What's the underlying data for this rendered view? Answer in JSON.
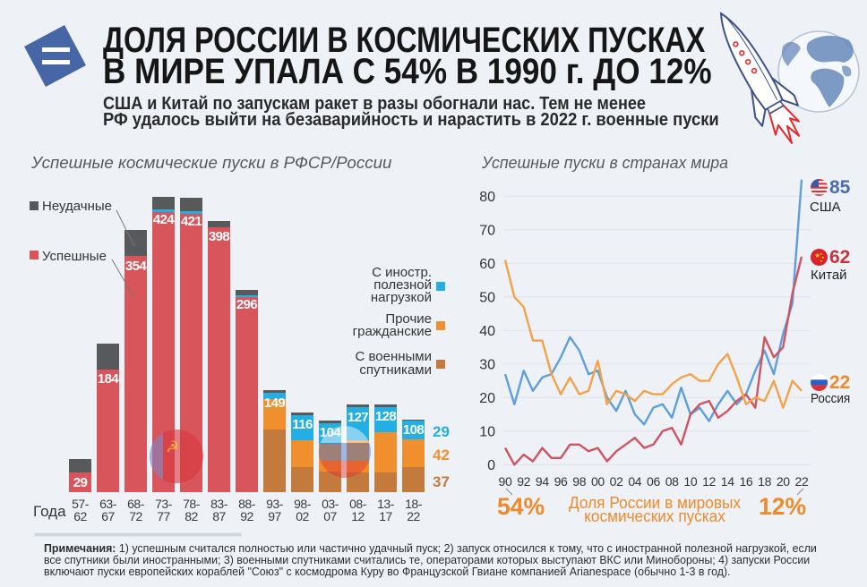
{
  "header": {
    "logo_icon": "equals-logo-icon",
    "title_line1": "ДОЛЯ РОССИИ В КОСМИЧЕСКИХ ПУСКАХ",
    "title_line2": "В МИРЕ УПАЛА С 54% В 1990 г. ДО 12%",
    "subtitle_line1": "США и Китай по запускам ракет в разы обогнали нас. Тем не менее",
    "subtitle_line2": "РФ удалось выйти на безаварийность и нарастить в 2022 г. военные пуски",
    "illustration_icons": [
      "rocket-icon",
      "globe-icon"
    ]
  },
  "colors": {
    "background": "#eef2f7",
    "logo": "#4766a6",
    "failed": "#58595b",
    "successful": "#d8555b",
    "foreign": "#23aee4",
    "civil": "#f08f2e",
    "military": "#c27a3d",
    "usa": "#5e9fd9",
    "china": "#cf5360",
    "russia": "#f3a24a",
    "usa_label": "#4a6cb1",
    "china_label": "#c8333c",
    "russia_label": "#ef8a2b",
    "orange_text": "#ef8a2b"
  },
  "chart_data": [
    {
      "type": "bar",
      "stacked": true,
      "title": "Успешные космические пуски в РФСР/России",
      "xlabel": "Года",
      "ylabel": "",
      "ylim": [
        0,
        470
      ],
      "grid": false,
      "categories": [
        "57-62",
        "63-67",
        "68-72",
        "73-77",
        "78-82",
        "83-87",
        "88-92",
        "93-97",
        "98-02",
        "03-07",
        "08-12",
        "13-17",
        "18-22"
      ],
      "series": [
        {
          "key": "military",
          "name": "С военными спутниками",
          "values": [
            null,
            null,
            null,
            null,
            null,
            null,
            null,
            94,
            37,
            31,
            30,
            30,
            37
          ]
        },
        {
          "key": "civil",
          "name": "Прочие гражданские",
          "values": [
            null,
            null,
            null,
            null,
            null,
            null,
            null,
            46,
            41,
            41,
            48,
            60,
            42
          ]
        },
        {
          "key": "successful",
          "name": "Успешные",
          "values": [
            29,
            184,
            354,
            420,
            418,
            398,
            293,
            null,
            null,
            null,
            null,
            null,
            null
          ]
        },
        {
          "key": "foreign",
          "name": "С иностр. полезной нагрузкой",
          "values": [
            0,
            0,
            0,
            4,
            3,
            0,
            3,
            9,
            38,
            32,
            49,
            38,
            29
          ]
        },
        {
          "key": "failed",
          "name": "Неудачные",
          "values": [
            21,
            39,
            40,
            19,
            21,
            9,
            8,
            4,
            3,
            3,
            4,
            4,
            1
          ]
        }
      ],
      "value_labels": [
        "29",
        "184",
        "354",
        "424",
        "421",
        "398",
        "296",
        "149",
        "116",
        "104",
        "127",
        "128",
        "108"
      ],
      "last_bar_labels": [
        {
          "key": "foreign",
          "text": "29"
        },
        {
          "key": "civil",
          "text": "42"
        },
        {
          "key": "military",
          "text": "37"
        }
      ],
      "legend": {
        "left": [
          {
            "key": "failed",
            "lines": [
              "Неудачные"
            ]
          },
          {
            "key": "successful",
            "lines": [
              "Успешные"
            ]
          }
        ],
        "right": [
          {
            "key": "foreign",
            "lines": [
              "С иностр.",
              "полезной",
              "нагрузкой"
            ]
          },
          {
            "key": "civil",
            "lines": [
              "Прочие",
              "гражданские"
            ]
          },
          {
            "key": "military",
            "lines": [
              "С военными",
              "спутниками"
            ]
          }
        ]
      }
    },
    {
      "type": "line",
      "title": "Успешные пуски в странах мира",
      "xlabel": "",
      "ylabel": "",
      "x": [
        1990,
        1991,
        1992,
        1993,
        1994,
        1995,
        1996,
        1997,
        1998,
        1999,
        2000,
        2001,
        2002,
        2003,
        2004,
        2005,
        2006,
        2007,
        2008,
        2009,
        2010,
        2011,
        2012,
        2013,
        2014,
        2015,
        2016,
        2017,
        2018,
        2019,
        2020,
        2021,
        2022
      ],
      "x_ticks": [
        1990,
        1992,
        1994,
        1996,
        1998,
        2000,
        2002,
        2004,
        2006,
        2008,
        2010,
        2012,
        2014,
        2016,
        2018,
        2020,
        2022
      ],
      "x_tick_labels": [
        "90",
        "92",
        "94",
        "96",
        "98",
        "00",
        "02",
        "04",
        "06",
        "08",
        "10",
        "12",
        "14",
        "16",
        "18",
        "20",
        "22"
      ],
      "ylim": [
        0,
        80
      ],
      "y_ticks": [
        0,
        10,
        20,
        30,
        40,
        50,
        60,
        70,
        80
      ],
      "y_tick_labels": [
        "0",
        "10",
        "20",
        "30",
        "40",
        "50",
        "60",
        "70",
        "80"
      ],
      "grid": true,
      "series": [
        {
          "key": "usa",
          "name": "США",
          "end_label": "85",
          "flag_icon": "usa-flag-icon",
          "values": [
            27,
            18,
            28,
            22,
            26,
            27,
            32,
            38,
            34,
            27,
            28,
            20,
            16,
            22,
            15,
            12,
            17,
            18,
            14,
            23,
            15,
            17,
            13,
            18,
            22,
            18,
            21,
            28,
            34,
            27,
            39,
            48,
            85
          ]
        },
        {
          "key": "china",
          "name": "Китай",
          "end_label": "62",
          "flag_icon": "china-flag-icon",
          "values": [
            5,
            0,
            3,
            1,
            5,
            2,
            2,
            6,
            6,
            4,
            5,
            1,
            4,
            6,
            8,
            5,
            6,
            10,
            11,
            6,
            15,
            18,
            19,
            14,
            16,
            19,
            21,
            17,
            38,
            32,
            35,
            51,
            62
          ]
        },
        {
          "key": "russia",
          "name": "Россия",
          "end_label": "22",
          "flag_icon": "russia-flag-icon",
          "values": [
            61,
            50,
            47,
            37,
            37,
            27,
            21,
            26,
            21,
            22,
            31,
            18,
            22,
            21,
            19,
            22,
            21,
            21,
            24,
            26,
            27,
            25,
            25,
            30,
            33,
            26,
            18,
            20,
            19,
            25,
            17,
            25,
            22
          ]
        }
      ],
      "annotations": {
        "share_1990": "54%",
        "share_2022": "12%",
        "share_caption_line1": "Доля России в мировых",
        "share_caption_line2": "космических пусках"
      }
    }
  ],
  "notes": {
    "label": "Примечания:",
    "lines": [
      "1) успешным считался полностью или частично удачный пуск; 2) запуск относился к тому, что с иностранной полезной нагрузкой, если",
      "все спутники были иностранными; 3) военными спутниками считались те, операторами которых выступают ВКС или Минобороны; 4) запуски России",
      "включают пуски европейских кораблей \"Союз\" с космодрома Куру во Французской Гвиане компанией Arianespace (обычно 1-3 в год)."
    ]
  }
}
